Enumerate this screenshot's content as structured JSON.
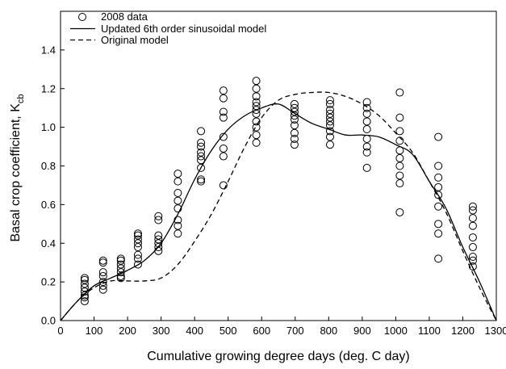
{
  "chart_data": {
    "type": "scatter",
    "title": "",
    "xlabel": "Cumulative growing degree days (deg. C day)",
    "ylabel_main": "Basal crop coefficient, K",
    "ylabel_sub": "cb",
    "xlim": [
      0,
      1300
    ],
    "ylim": [
      0.0,
      1.6
    ],
    "xticks": [
      0,
      100,
      200,
      300,
      400,
      500,
      600,
      700,
      800,
      900,
      1000,
      1100,
      1200,
      1300
    ],
    "yticks": [
      0.0,
      0.2,
      0.4,
      0.6,
      0.8,
      1.0,
      1.2,
      1.4
    ],
    "ytick_labels": [
      "0.0",
      "0.2",
      "0.4",
      "0.6",
      "0.8",
      "1.0",
      "1.2",
      "1.4"
    ],
    "grid": false,
    "legend_position": "top-left",
    "legend": [
      {
        "label": "2008 data",
        "style": "circle"
      },
      {
        "label": "Updated 6th order sinusoidal model",
        "style": "solid"
      },
      {
        "label": "Original model",
        "style": "dashed"
      }
    ],
    "scatter_groups": [
      {
        "x": 72,
        "y": [
          0.1,
          0.12,
          0.13,
          0.15,
          0.17,
          0.19,
          0.21,
          0.22
        ]
      },
      {
        "x": 127,
        "y": [
          0.16,
          0.18,
          0.2,
          0.23,
          0.25,
          0.3,
          0.31
        ]
      },
      {
        "x": 180,
        "y": [
          0.22,
          0.23,
          0.25,
          0.27,
          0.29,
          0.31,
          0.32
        ]
      },
      {
        "x": 231,
        "y": [
          0.29,
          0.32,
          0.34,
          0.38,
          0.4,
          0.42,
          0.44,
          0.45
        ]
      },
      {
        "x": 292,
        "y": [
          0.36,
          0.38,
          0.4,
          0.42,
          0.44,
          0.52,
          0.54
        ]
      },
      {
        "x": 350,
        "y": [
          0.45,
          0.49,
          0.52,
          0.58,
          0.62,
          0.66,
          0.72,
          0.76
        ]
      },
      {
        "x": 419,
        "y": [
          0.72,
          0.73,
          0.79,
          0.83,
          0.85,
          0.87,
          0.9,
          0.92,
          0.98
        ]
      },
      {
        "x": 486,
        "y": [
          0.7,
          0.85,
          0.89,
          0.95,
          1.05,
          1.08,
          1.15,
          1.19
        ]
      },
      {
        "x": 584,
        "y": [
          0.92,
          0.96,
          1.0,
          1.03,
          1.07,
          1.09,
          1.11,
          1.13,
          1.16,
          1.2,
          1.24
        ]
      },
      {
        "x": 698,
        "y": [
          0.91,
          0.94,
          0.97,
          1.01,
          1.04,
          1.06,
          1.08,
          1.1,
          1.12
        ]
      },
      {
        "x": 804,
        "y": [
          0.91,
          0.95,
          0.98,
          1.01,
          1.03,
          1.05,
          1.07,
          1.09,
          1.12,
          1.14
        ]
      },
      {
        "x": 914,
        "y": [
          0.79,
          0.87,
          0.9,
          0.94,
          0.99,
          1.03,
          1.07,
          1.1,
          1.13
        ]
      },
      {
        "x": 1012,
        "y": [
          0.56,
          0.71,
          0.75,
          0.8,
          0.84,
          0.88,
          0.93,
          0.98,
          1.05,
          1.18
        ]
      },
      {
        "x": 1127,
        "y": [
          0.32,
          0.45,
          0.5,
          0.59,
          0.65,
          0.69,
          0.74,
          0.8,
          0.95
        ]
      },
      {
        "x": 1230,
        "y": [
          0.28,
          0.31,
          0.33,
          0.38,
          0.43,
          0.49,
          0.53,
          0.57,
          0.59
        ]
      }
    ],
    "series": [
      {
        "style": "solid",
        "x": [
          0,
          50,
          100,
          150,
          200,
          250,
          300,
          350,
          400,
          450,
          500,
          550,
          600,
          650,
          700,
          750,
          800,
          850,
          900,
          950,
          1000,
          1050,
          1100,
          1150,
          1200,
          1250,
          1300
        ],
        "y": [
          0.0,
          0.1,
          0.18,
          0.22,
          0.26,
          0.31,
          0.4,
          0.55,
          0.73,
          0.88,
          0.99,
          1.06,
          1.1,
          1.12,
          1.07,
          1.02,
          0.99,
          0.96,
          0.96,
          0.95,
          0.91,
          0.86,
          0.72,
          0.58,
          0.38,
          0.2,
          0.0
        ]
      },
      {
        "style": "dashed",
        "x": [
          0,
          50,
          100,
          150,
          200,
          250,
          300,
          350,
          400,
          450,
          500,
          550,
          600,
          650,
          700,
          750,
          800,
          850,
          900,
          950,
          1000,
          1050,
          1100,
          1150,
          1200,
          1250,
          1300
        ],
        "y": [
          0.0,
          0.1,
          0.17,
          0.205,
          0.205,
          0.205,
          0.22,
          0.29,
          0.41,
          0.55,
          0.72,
          0.9,
          1.05,
          1.14,
          1.17,
          1.18,
          1.18,
          1.16,
          1.12,
          1.06,
          0.97,
          0.87,
          0.72,
          0.56,
          0.36,
          0.17,
          0.0
        ]
      }
    ]
  }
}
